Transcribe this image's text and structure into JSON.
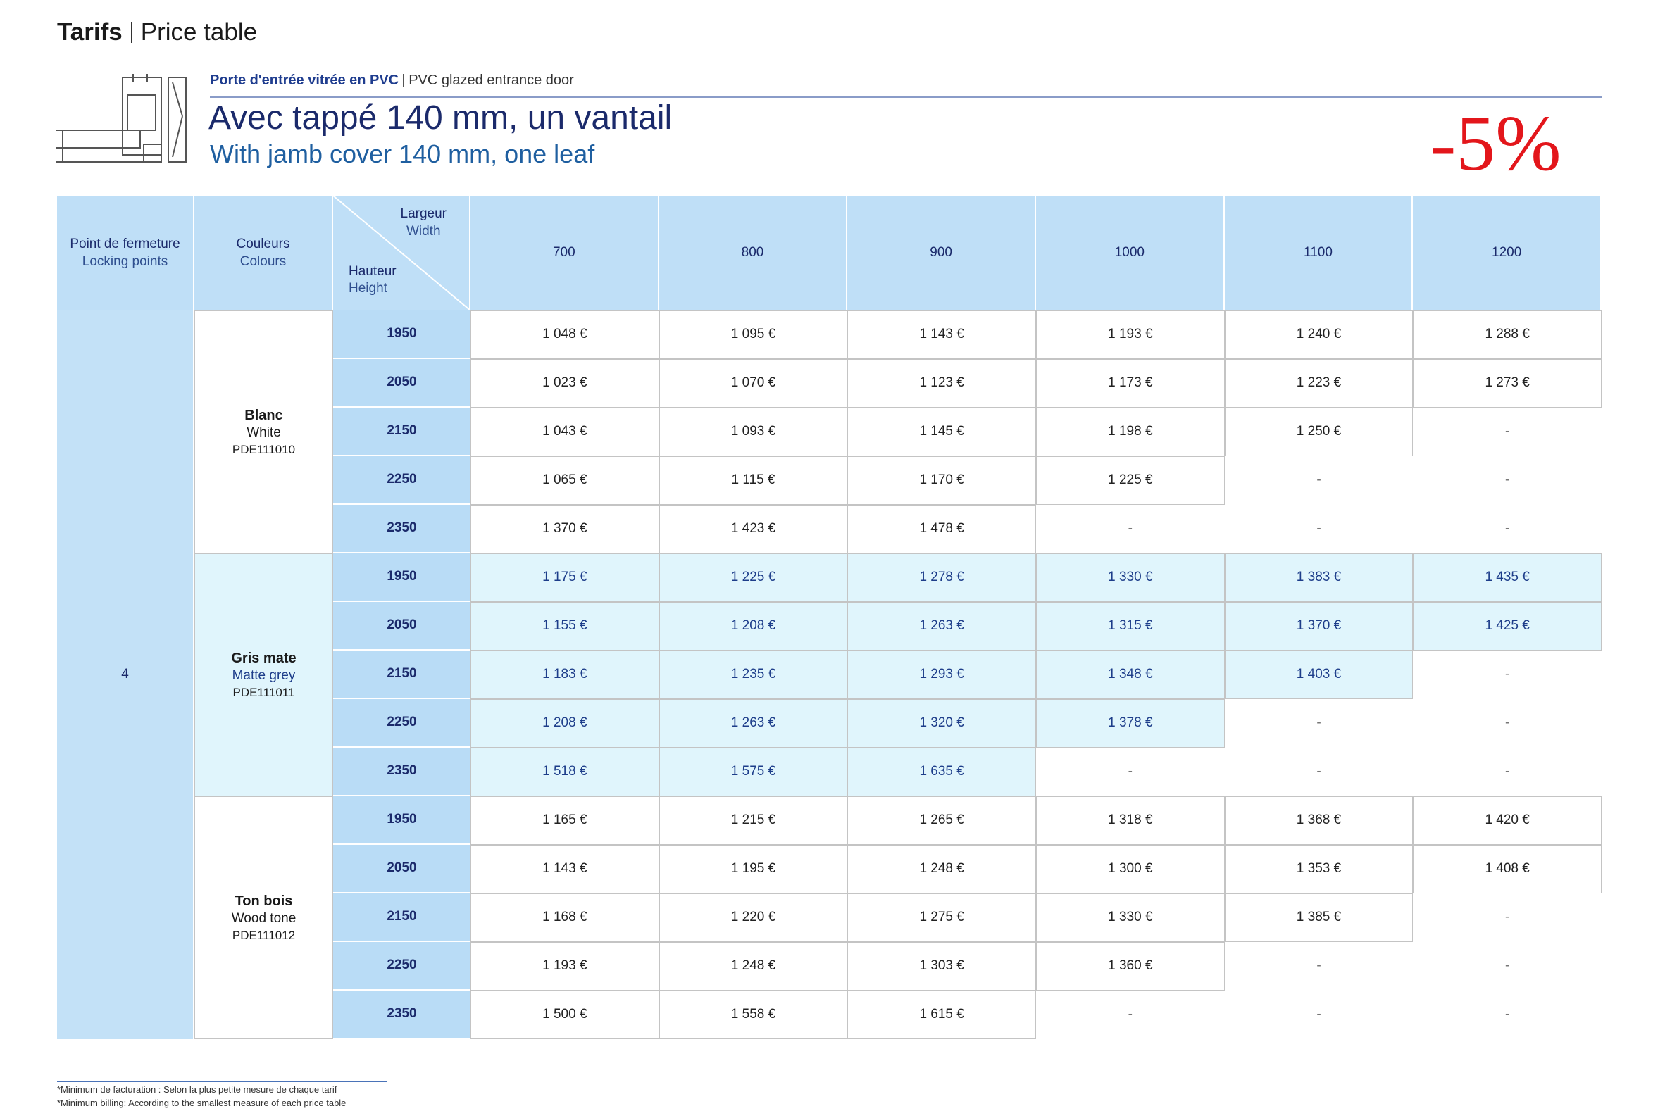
{
  "header": {
    "title": "Tarifs",
    "subtitle": "Price table"
  },
  "product": {
    "category_fr": "Porte d'entrée vitrée en PVC",
    "category_en": "PVC glazed entrance door",
    "title_fr": "Avec tappé 140 mm, un vantail",
    "title_en": "With jamb cover 140 mm, one leaf",
    "discount": "-5%"
  },
  "table": {
    "headers": {
      "locking_fr": "Point de fermeture",
      "locking_en": "Locking points",
      "colours_fr": "Couleurs",
      "colours_en": "Colours",
      "width_fr": "Largeur",
      "width_en": "Width",
      "height_fr": "Hauteur",
      "height_en": "Height"
    },
    "widths": [
      "700",
      "800",
      "900",
      "1000",
      "1100",
      "1200"
    ],
    "locking_points": "4",
    "groups": [
      {
        "name_fr": "Blanc",
        "name_en": "White",
        "code": "PDE111010",
        "rows": [
          {
            "height": "1950",
            "prices": [
              "1 048 €",
              "1 095 €",
              "1 143 €",
              "1 193 €",
              "1 240 €",
              "1 288 €"
            ]
          },
          {
            "height": "2050",
            "prices": [
              "1 023 €",
              "1 070 €",
              "1 123 €",
              "1 173 €",
              "1 223 €",
              "1 273 €"
            ]
          },
          {
            "height": "2150",
            "prices": [
              "1 043 €",
              "1 093 €",
              "1 145 €",
              "1 198 €",
              "1 250 €",
              "-"
            ]
          },
          {
            "height": "2250",
            "prices": [
              "1 065 €",
              "1 115 €",
              "1 170 €",
              "1 225 €",
              "-",
              "-"
            ]
          },
          {
            "height": "2350",
            "prices": [
              "1 370 €",
              "1 423 €",
              "1 478 €",
              "-",
              "-",
              "-"
            ]
          }
        ]
      },
      {
        "name_fr": "Gris mate",
        "name_en": "Matte grey",
        "code": "PDE111011",
        "rows": [
          {
            "height": "1950",
            "prices": [
              "1 175 €",
              "1 225 €",
              "1 278 €",
              "1 330 €",
              "1 383 €",
              "1 435 €"
            ]
          },
          {
            "height": "2050",
            "prices": [
              "1 155 €",
              "1 208 €",
              "1 263 €",
              "1 315 €",
              "1 370 €",
              "1 425 €"
            ]
          },
          {
            "height": "2150",
            "prices": [
              "1 183 €",
              "1 235 €",
              "1 293 €",
              "1 348 €",
              "1 403 €",
              "-"
            ]
          },
          {
            "height": "2250",
            "prices": [
              "1 208 €",
              "1 263 €",
              "1 320 €",
              "1 378 €",
              "-",
              "-"
            ]
          },
          {
            "height": "2350",
            "prices": [
              "1 518 €",
              "1 575 €",
              "1 635 €",
              "-",
              "-",
              "-"
            ]
          }
        ]
      },
      {
        "name_fr": "Ton bois",
        "name_en": "Wood tone",
        "code": "PDE111012",
        "rows": [
          {
            "height": "1950",
            "prices": [
              "1 165 €",
              "1 215 €",
              "1 265 €",
              "1 318 €",
              "1 368 €",
              "1 420 €"
            ]
          },
          {
            "height": "2050",
            "prices": [
              "1 143 €",
              "1 195 €",
              "1 248 €",
              "1 300 €",
              "1 353 €",
              "1 408 €"
            ]
          },
          {
            "height": "2150",
            "prices": [
              "1 168 €",
              "1 220 €",
              "1 275 €",
              "1 330 €",
              "1 385 €",
              "-"
            ]
          },
          {
            "height": "2250",
            "prices": [
              "1 193 €",
              "1 248 €",
              "1 303 €",
              "1 360 €",
              "-",
              "-"
            ]
          },
          {
            "height": "2350",
            "prices": [
              "1 500 €",
              "1 558 €",
              "1 615 €",
              "-",
              "-",
              "-"
            ]
          }
        ]
      }
    ]
  },
  "footnotes": [
    "*Minimum de facturation : Selon la plus petite mesure de chaque tarif",
    "*Minimum billing: According to the smallest measure of each price table"
  ]
}
